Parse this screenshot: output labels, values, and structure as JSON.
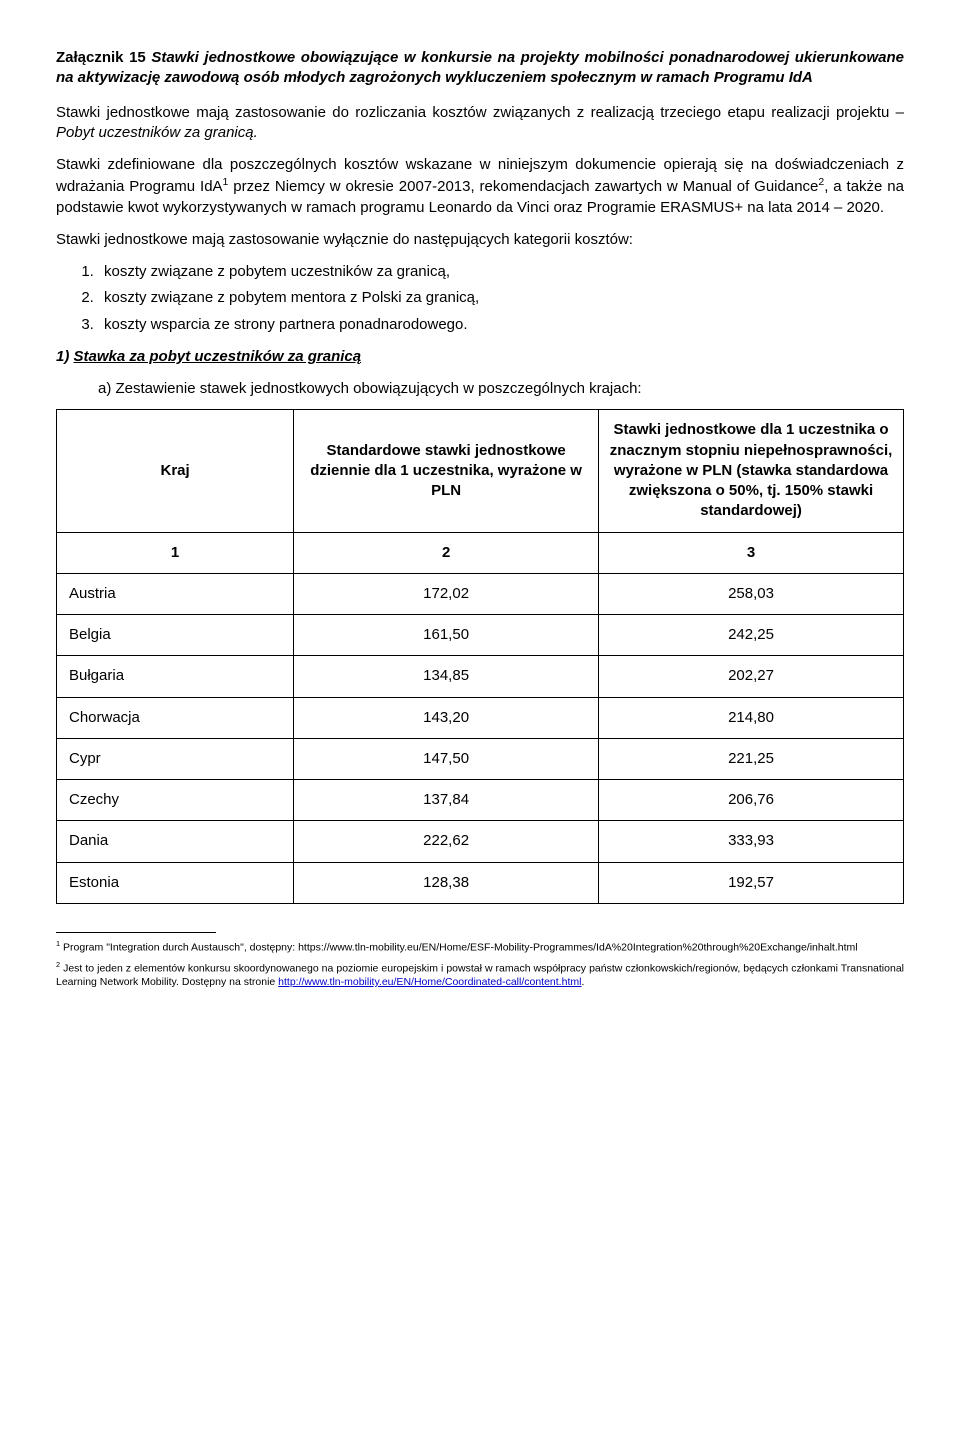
{
  "title_lead": "Załącznik 15 ",
  "title_rest": "Stawki jednostkowe obowiązujące w konkursie na projekty mobilności ponadnarodowej ukierunkowane na aktywizację zawodową osób młodych zagrożonych wykluczeniem społecznym w ramach Programu IdA",
  "para1_a": "Stawki jednostkowe mają zastosowanie do rozliczania kosztów związanych z realizacją trzeciego etapu realizacji projektu – ",
  "para1_b": "Pobyt uczestników za granicą.",
  "para2": "Stawki zdefiniowane dla poszczególnych kosztów wskazane w niniejszym dokumencie opierają się na doświadczeniach z wdrażania Programu IdA",
  "para2_after_sup1": " przez Niemcy w okresie 2007-2013, rekomendacjach zawartych w Manual of Guidance",
  "para2_after_sup2": ", a także na podstawie kwot wykorzystywanych w ramach programu Leonardo da Vinci oraz  Programie ERASMUS+ na lata 2014 – 2020.",
  "para3": "Stawki jednostkowe mają zastosowanie wyłącznie do następujących kategorii kosztów:",
  "list_items": [
    "koszty związane z pobytem uczestników za granicą,",
    "koszty związane z pobytem mentora z Polski za granicą,",
    "koszty wsparcia ze strony partnera ponadnarodowego."
  ],
  "section1_num": "1) ",
  "section1_title": "Stawka za pobyt uczestników za granicą",
  "section1_a": "a)  Zestawienie stawek jednostkowych obowiązujących w poszczególnych krajach:",
  "table": {
    "headers": {
      "c1": "Kraj",
      "c2": "Standardowe stawki jednostkowe dziennie dla 1 uczestnika, wyrażone w PLN",
      "c3": "Stawki jednostkowe dla 1 uczestnika o znacznym stopniu niepełnosprawności, wyrażone w PLN (stawka standardowa zwiększona o 50%, tj. 150% stawki standardowej)"
    },
    "numrow": [
      "1",
      "2",
      "3"
    ],
    "rows": [
      {
        "label": "Austria",
        "v1": "172,02",
        "v2": "258,03"
      },
      {
        "label": "Belgia",
        "v1": "161,50",
        "v2": "242,25"
      },
      {
        "label": "Bułgaria",
        "v1": "134,85",
        "v2": "202,27"
      },
      {
        "label": "Chorwacja",
        "v1": "143,20",
        "v2": "214,80"
      },
      {
        "label": "Cypr",
        "v1": "147,50",
        "v2": "221,25"
      },
      {
        "label": "Czechy",
        "v1": "137,84",
        "v2": "206,76"
      },
      {
        "label": "Dania",
        "v1": "222,62",
        "v2": "333,93"
      },
      {
        "label": "Estonia",
        "v1": "128,38",
        "v2": "192,57"
      }
    ]
  },
  "fn1_a": " Program \"Integration durch Austausch\", dostępny: https://www.tln-mobility.eu/EN/Home/ESF-Mobility-Programmes/IdA%20Integration%20through%20Exchange/inhalt.html",
  "fn2_a": " Jest to jeden z elementów konkursu skoordynowanego na poziomie europejskim i powstał w ramach współpracy państw członkowskich/regionów, będących członkami Transnational Learning Network Mobility.  Dostępny na stronie ",
  "fn2_link1": "http://www.tln-mobility.eu/EN/Home/Coordinated-call/content.html",
  "fn2_dot": "."
}
